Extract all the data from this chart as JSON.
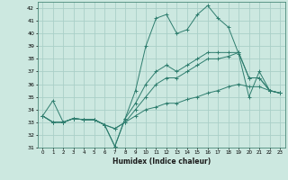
{
  "xlabel": "Humidex (Indice chaleur)",
  "background_color": "#cce8e0",
  "line_color": "#2e7d6e",
  "grid_color": "#aacfc8",
  "xlim": [
    -0.5,
    23.5
  ],
  "ylim": [
    31,
    42.5
  ],
  "yticks": [
    31,
    32,
    33,
    34,
    35,
    36,
    37,
    38,
    39,
    40,
    41,
    42
  ],
  "xticks": [
    0,
    1,
    2,
    3,
    4,
    5,
    6,
    7,
    8,
    9,
    10,
    11,
    12,
    13,
    14,
    15,
    16,
    17,
    18,
    19,
    20,
    21,
    22,
    23
  ],
  "series": [
    [
      33.5,
      34.7,
      33.0,
      33.3,
      33.2,
      33.2,
      32.8,
      31.1,
      33.3,
      35.5,
      39.0,
      41.2,
      41.5,
      40.0,
      40.3,
      41.5,
      42.2,
      41.2,
      40.5,
      38.4,
      35.0,
      37.0,
      35.5,
      35.3
    ],
    [
      33.5,
      33.0,
      33.0,
      33.3,
      33.2,
      33.2,
      32.8,
      32.5,
      33.0,
      34.0,
      35.0,
      36.0,
      36.5,
      36.5,
      37.0,
      37.5,
      38.0,
      38.0,
      38.2,
      38.5,
      36.5,
      36.5,
      35.5,
      35.3
    ],
    [
      33.5,
      33.0,
      33.0,
      33.3,
      33.2,
      33.2,
      32.8,
      32.5,
      33.0,
      33.5,
      34.0,
      34.2,
      34.5,
      34.5,
      34.8,
      35.0,
      35.3,
      35.5,
      35.8,
      36.0,
      35.8,
      35.8,
      35.5,
      35.3
    ],
    [
      33.5,
      33.0,
      33.0,
      33.3,
      33.2,
      33.2,
      32.8,
      31.1,
      33.3,
      34.5,
      36.0,
      37.0,
      37.5,
      37.0,
      37.5,
      38.0,
      38.5,
      38.5,
      38.5,
      38.5,
      36.5,
      36.5,
      35.5,
      35.3
    ]
  ]
}
